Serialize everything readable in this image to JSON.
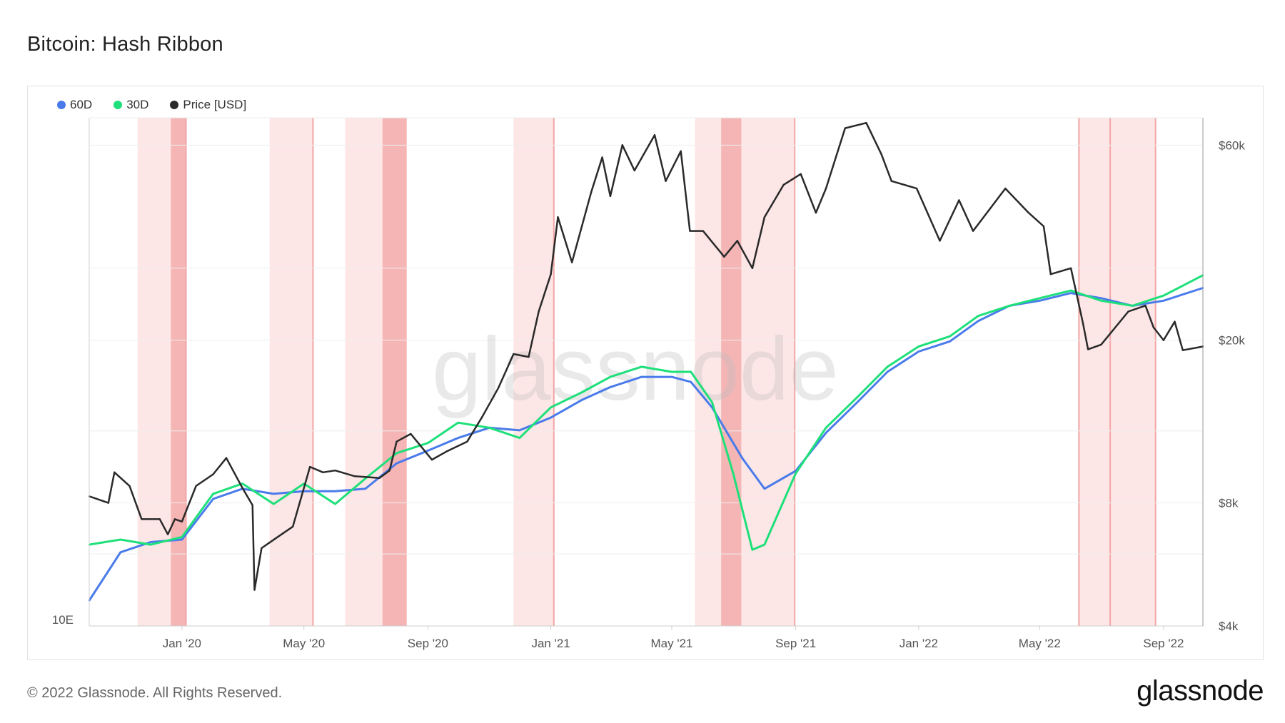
{
  "title": "Bitcoin: Hash Ribbon",
  "footer": {
    "copyright": "© 2022 Glassnode. All Rights Reserved.",
    "logo": "glassnode"
  },
  "watermark": "glassnode",
  "colors": {
    "sixty_day": "#4a7bea",
    "thirty_day": "#1ee07a",
    "price": "#2a2a2a",
    "band_light": "#fde6e6",
    "band_dark": "#f5b5b5"
  },
  "chart_data": {
    "type": "line",
    "title": "Bitcoin: Hash Ribbon",
    "legend": [
      {
        "name": "60D",
        "color": "#4a7bea"
      },
      {
        "name": "30D",
        "color": "#1ee07a"
      },
      {
        "name": "Price [USD]",
        "color": "#2a2a2a"
      }
    ],
    "legend_position": "top-left",
    "x_range": [
      "2019-10-01",
      "2022-10-10"
    ],
    "x_ticks": [
      {
        "date": "2020-01-01",
        "label": "Jan '20"
      },
      {
        "date": "2020-05-01",
        "label": "May '20"
      },
      {
        "date": "2020-09-01",
        "label": "Sep '20"
      },
      {
        "date": "2021-01-01",
        "label": "Jan '21"
      },
      {
        "date": "2021-05-01",
        "label": "May '21"
      },
      {
        "date": "2021-09-01",
        "label": "Sep '21"
      },
      {
        "date": "2022-01-01",
        "label": "Jan '22"
      },
      {
        "date": "2022-05-01",
        "label": "May '22"
      },
      {
        "date": "2022-09-01",
        "label": "Sep '22"
      }
    ],
    "left_axis": {
      "label": "",
      "ticks": [
        {
          "value": "10E",
          "label": "10E"
        }
      ]
    },
    "right_axis": {
      "scale": "log",
      "ylim": [
        4000,
        70000
      ],
      "ticks": [
        {
          "value": 4000,
          "label": "$4k"
        },
        {
          "value": 8000,
          "label": "$8k"
        },
        {
          "value": 20000,
          "label": "$20k"
        },
        {
          "value": 60000,
          "label": "$60k"
        }
      ]
    },
    "capitulation_bands": [
      {
        "start": "2019-11-18",
        "end": "2020-01-05",
        "shade": "light"
      },
      {
        "start": "2019-12-21",
        "end": "2020-01-05",
        "shade": "dark"
      },
      {
        "start": "2020-03-28",
        "end": "2020-05-10",
        "shade": "light"
      },
      {
        "start": "2020-06-11",
        "end": "2020-07-24",
        "shade": "light"
      },
      {
        "start": "2020-07-18",
        "end": "2020-08-11",
        "shade": "dark"
      },
      {
        "start": "2020-11-25",
        "end": "2021-01-04",
        "shade": "light"
      },
      {
        "start": "2021-05-24",
        "end": "2021-08-31",
        "shade": "light"
      },
      {
        "start": "2021-06-19",
        "end": "2021-07-09",
        "shade": "dark"
      },
      {
        "start": "2022-06-09",
        "end": "2022-08-24",
        "shade": "light"
      }
    ],
    "band_lines": [
      "2020-01-05",
      "2020-05-10",
      "2021-01-04",
      "2021-08-31",
      "2022-06-09",
      "2022-07-10",
      "2022-08-24"
    ],
    "series": [
      {
        "name": "60D",
        "color": "#4a7bea",
        "axis": "hash",
        "points": [
          [
            "2019-10-01",
            0.05
          ],
          [
            "2019-11-01",
            0.145
          ],
          [
            "2019-12-01",
            0.165
          ],
          [
            "2020-01-01",
            0.17
          ],
          [
            "2020-02-01",
            0.25
          ],
          [
            "2020-03-01",
            0.27
          ],
          [
            "2020-04-01",
            0.26
          ],
          [
            "2020-05-01",
            0.265
          ],
          [
            "2020-06-01",
            0.265
          ],
          [
            "2020-07-01",
            0.27
          ],
          [
            "2020-08-01",
            0.32
          ],
          [
            "2020-09-01",
            0.345
          ],
          [
            "2020-10-01",
            0.37
          ],
          [
            "2020-11-01",
            0.39
          ],
          [
            "2020-12-01",
            0.385
          ],
          [
            "2021-01-01",
            0.41
          ],
          [
            "2021-02-01",
            0.445
          ],
          [
            "2021-03-01",
            0.47
          ],
          [
            "2021-04-01",
            0.49
          ],
          [
            "2021-05-01",
            0.49
          ],
          [
            "2021-05-20",
            0.48
          ],
          [
            "2021-06-10",
            0.43
          ],
          [
            "2021-07-10",
            0.33
          ],
          [
            "2021-08-01",
            0.27
          ],
          [
            "2021-09-01",
            0.305
          ],
          [
            "2021-10-01",
            0.38
          ],
          [
            "2021-11-01",
            0.44
          ],
          [
            "2021-12-01",
            0.5
          ],
          [
            "2022-01-01",
            0.54
          ],
          [
            "2022-02-01",
            0.56
          ],
          [
            "2022-03-01",
            0.6
          ],
          [
            "2022-04-01",
            0.63
          ],
          [
            "2022-05-01",
            0.64
          ],
          [
            "2022-06-01",
            0.655
          ],
          [
            "2022-07-01",
            0.645
          ],
          [
            "2022-08-01",
            0.63
          ],
          [
            "2022-09-01",
            0.64
          ],
          [
            "2022-10-10",
            0.665
          ]
        ]
      },
      {
        "name": "30D",
        "color": "#1ee07a",
        "axis": "hash",
        "points": [
          [
            "2019-10-01",
            0.16
          ],
          [
            "2019-11-01",
            0.17
          ],
          [
            "2019-12-01",
            0.16
          ],
          [
            "2020-01-01",
            0.175
          ],
          [
            "2020-02-01",
            0.26
          ],
          [
            "2020-03-01",
            0.28
          ],
          [
            "2020-04-01",
            0.24
          ],
          [
            "2020-05-01",
            0.28
          ],
          [
            "2020-06-01",
            0.24
          ],
          [
            "2020-07-01",
            0.29
          ],
          [
            "2020-08-01",
            0.34
          ],
          [
            "2020-09-01",
            0.36
          ],
          [
            "2020-10-01",
            0.4
          ],
          [
            "2020-11-01",
            0.39
          ],
          [
            "2020-12-01",
            0.37
          ],
          [
            "2021-01-01",
            0.43
          ],
          [
            "2021-02-01",
            0.46
          ],
          [
            "2021-03-01",
            0.49
          ],
          [
            "2021-04-01",
            0.51
          ],
          [
            "2021-05-01",
            0.5
          ],
          [
            "2021-05-20",
            0.5
          ],
          [
            "2021-06-10",
            0.44
          ],
          [
            "2021-07-01",
            0.3
          ],
          [
            "2021-07-20",
            0.15
          ],
          [
            "2021-08-01",
            0.16
          ],
          [
            "2021-09-01",
            0.3
          ],
          [
            "2021-10-01",
            0.39
          ],
          [
            "2021-11-01",
            0.45
          ],
          [
            "2021-12-01",
            0.51
          ],
          [
            "2022-01-01",
            0.55
          ],
          [
            "2022-02-01",
            0.57
          ],
          [
            "2022-03-01",
            0.61
          ],
          [
            "2022-04-01",
            0.63
          ],
          [
            "2022-05-01",
            0.645
          ],
          [
            "2022-06-01",
            0.66
          ],
          [
            "2022-07-01",
            0.64
          ],
          [
            "2022-08-01",
            0.63
          ],
          [
            "2022-09-01",
            0.65
          ],
          [
            "2022-10-10",
            0.69
          ]
        ]
      },
      {
        "name": "Price [USD]",
        "color": "#2a2a2a",
        "axis": "price",
        "points": [
          [
            "2019-10-01",
            8300
          ],
          [
            "2019-10-20",
            8000
          ],
          [
            "2019-10-26",
            9500
          ],
          [
            "2019-11-10",
            8800
          ],
          [
            "2019-11-22",
            7300
          ],
          [
            "2019-12-10",
            7300
          ],
          [
            "2019-12-18",
            6700
          ],
          [
            "2019-12-25",
            7300
          ],
          [
            "2020-01-01",
            7200
          ],
          [
            "2020-01-15",
            8800
          ],
          [
            "2020-02-01",
            9400
          ],
          [
            "2020-02-14",
            10300
          ],
          [
            "2020-03-01",
            8700
          ],
          [
            "2020-03-11",
            7900
          ],
          [
            "2020-03-13",
            4900
          ],
          [
            "2020-03-20",
            6200
          ],
          [
            "2020-04-01",
            6500
          ],
          [
            "2020-04-20",
            7000
          ],
          [
            "2020-05-07",
            9800
          ],
          [
            "2020-05-20",
            9500
          ],
          [
            "2020-06-01",
            9600
          ],
          [
            "2020-06-20",
            9300
          ],
          [
            "2020-07-15",
            9200
          ],
          [
            "2020-07-25",
            9600
          ],
          [
            "2020-08-01",
            11300
          ],
          [
            "2020-08-15",
            11800
          ],
          [
            "2020-09-05",
            10200
          ],
          [
            "2020-09-20",
            10700
          ],
          [
            "2020-10-10",
            11300
          ],
          [
            "2020-10-25",
            13000
          ],
          [
            "2020-11-10",
            15300
          ],
          [
            "2020-11-25",
            18500
          ],
          [
            "2020-12-10",
            18200
          ],
          [
            "2020-12-20",
            23500
          ],
          [
            "2021-01-01",
            29000
          ],
          [
            "2021-01-08",
            40000
          ],
          [
            "2021-01-22",
            31000
          ],
          [
            "2021-02-10",
            46000
          ],
          [
            "2021-02-21",
            56000
          ],
          [
            "2021-03-01",
            45000
          ],
          [
            "2021-03-13",
            60000
          ],
          [
            "2021-03-25",
            52000
          ],
          [
            "2021-04-14",
            63500
          ],
          [
            "2021-04-25",
            49000
          ],
          [
            "2021-05-10",
            58000
          ],
          [
            "2021-05-19",
            37000
          ],
          [
            "2021-06-01",
            37000
          ],
          [
            "2021-06-22",
            32000
          ],
          [
            "2021-07-05",
            35000
          ],
          [
            "2021-07-20",
            30000
          ],
          [
            "2021-08-01",
            40000
          ],
          [
            "2021-08-20",
            48000
          ],
          [
            "2021-09-06",
            51000
          ],
          [
            "2021-09-21",
            41000
          ],
          [
            "2021-10-01",
            47000
          ],
          [
            "2021-10-20",
            66000
          ],
          [
            "2021-11-10",
            68000
          ],
          [
            "2021-11-25",
            57000
          ],
          [
            "2021-12-05",
            49000
          ],
          [
            "2021-12-30",
            47000
          ],
          [
            "2022-01-22",
            35000
          ],
          [
            "2022-02-10",
            44000
          ],
          [
            "2022-02-24",
            37000
          ],
          [
            "2022-03-28",
            47000
          ],
          [
            "2022-04-20",
            41000
          ],
          [
            "2022-05-05",
            38000
          ],
          [
            "2022-05-12",
            29000
          ],
          [
            "2022-06-01",
            30000
          ],
          [
            "2022-06-13",
            22000
          ],
          [
            "2022-06-18",
            19000
          ],
          [
            "2022-07-01",
            19500
          ],
          [
            "2022-07-28",
            23500
          ],
          [
            "2022-08-14",
            24300
          ],
          [
            "2022-08-22",
            21500
          ],
          [
            "2022-09-01",
            20000
          ],
          [
            "2022-09-12",
            22200
          ],
          [
            "2022-09-20",
            18900
          ],
          [
            "2022-10-10",
            19300
          ]
        ]
      }
    ]
  }
}
